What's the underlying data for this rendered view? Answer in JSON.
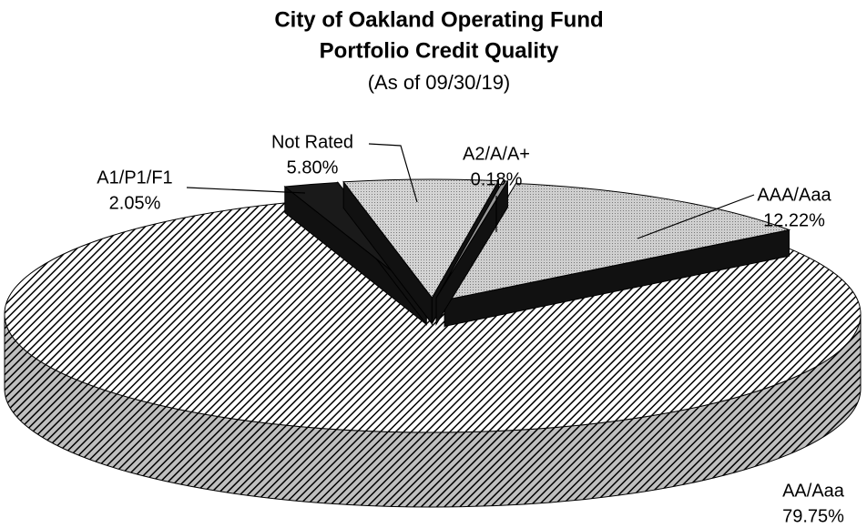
{
  "chart_data": {
    "type": "pie3d",
    "title": [
      "City of Oakland Operating Fund",
      "Portfolio Credit Quality"
    ],
    "subtitle": "(As of 09/30/19)",
    "categories": [
      "AAA/Aaa",
      "AA/Aaa",
      "A1/P1/F1",
      "Not Rated",
      "A2/A/A+"
    ],
    "values": [
      12.22,
      79.75,
      2.05,
      5.8,
      0.18
    ],
    "value_labels": [
      "12.22%",
      "79.75%",
      "2.05%",
      "5.80%",
      "0.18%"
    ],
    "colors": [
      "#cfcfcf",
      "#000000",
      "#1a1a1a",
      "#d4d4d4",
      "#9a9a9a"
    ],
    "patterns": [
      "dots",
      "hatch",
      "solid",
      "dots",
      "solid"
    ]
  }
}
